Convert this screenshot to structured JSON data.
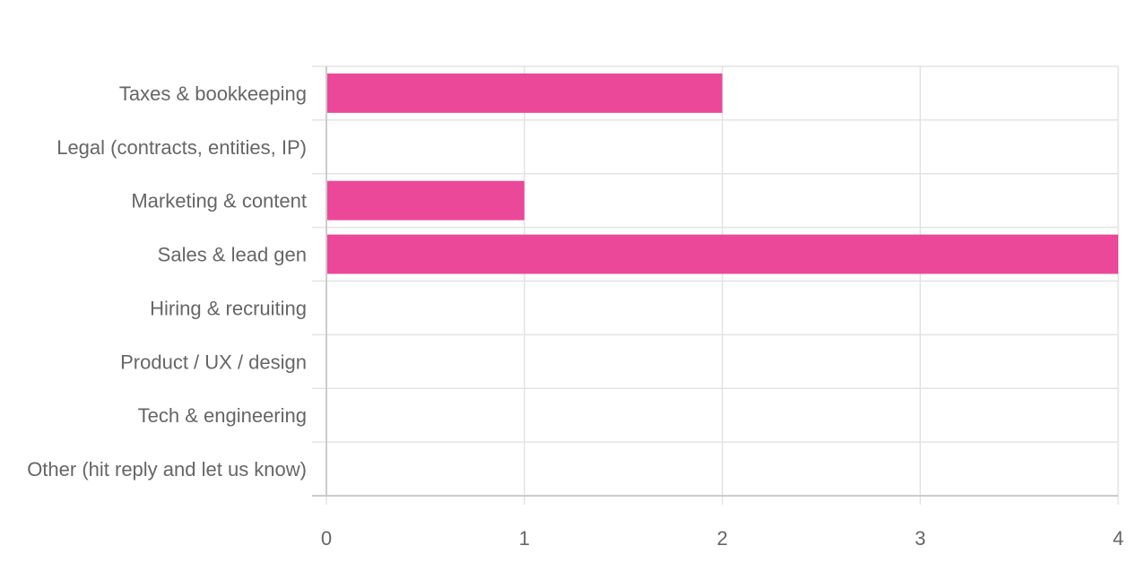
{
  "chart_data": {
    "type": "bar",
    "orientation": "horizontal",
    "title": "",
    "xlabel": "",
    "ylabel": "",
    "categories": [
      "Taxes & bookkeeping",
      "Legal (contracts, entities, IP)",
      "Marketing & content",
      "Sales & lead gen",
      "Hiring & recruiting",
      "Product / UX / design",
      "Tech & engineering",
      "Other (hit reply and let us know)"
    ],
    "values": [
      2,
      0,
      1,
      4,
      0,
      0,
      0,
      0
    ],
    "xlim": [
      0,
      4
    ],
    "xticks": [
      "0",
      "1",
      "2",
      "3",
      "4"
    ],
    "grid": true,
    "legend": "none",
    "bar_color": "#ec4899"
  }
}
